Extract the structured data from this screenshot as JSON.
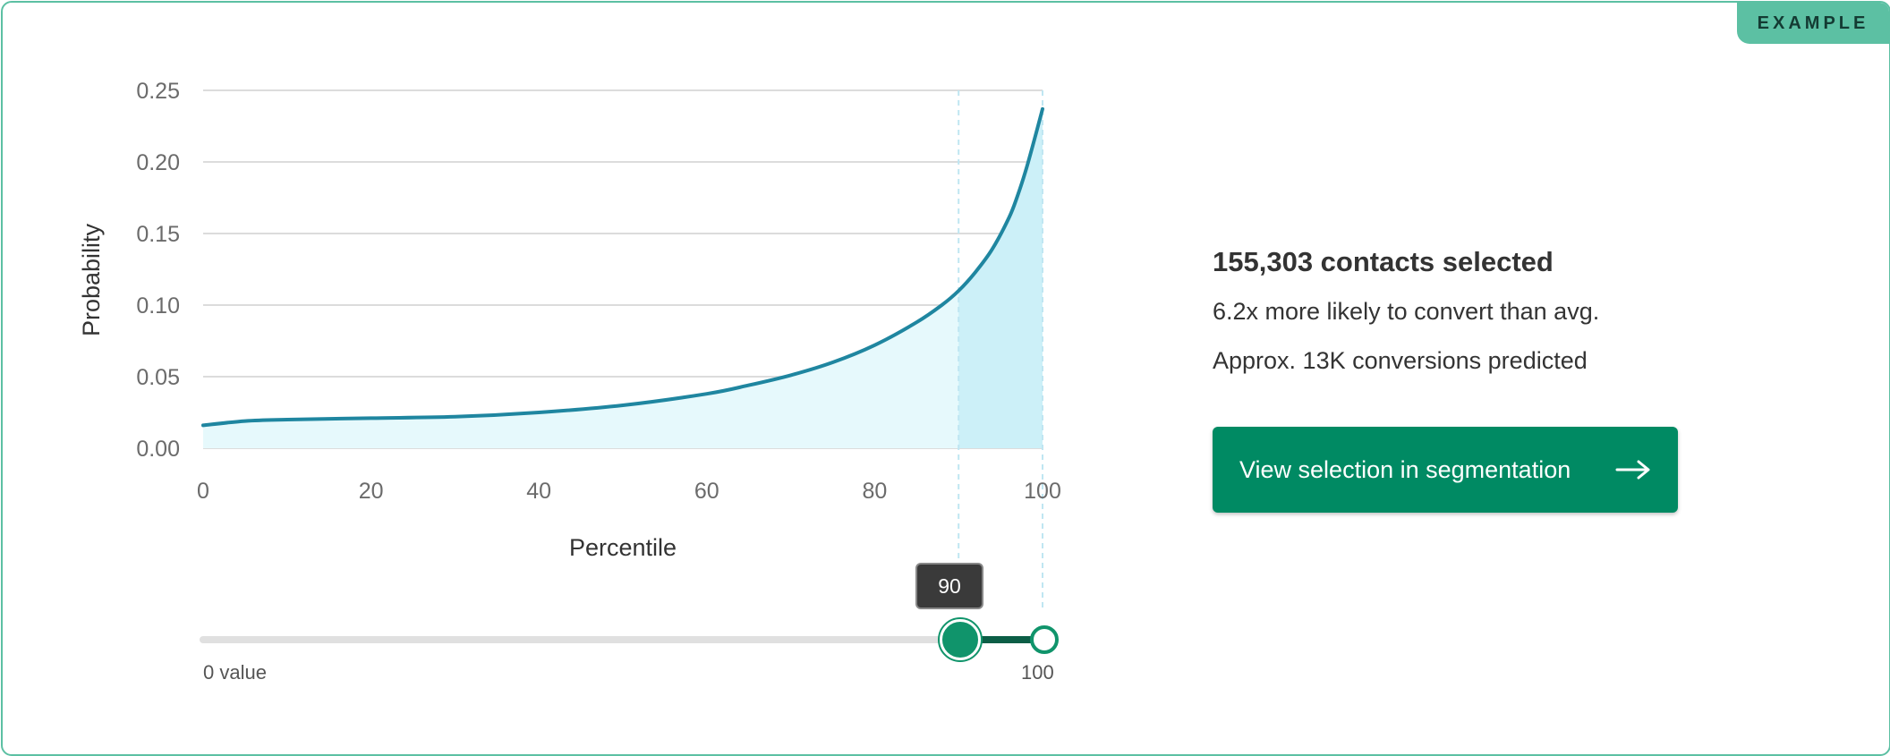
{
  "badge": {
    "label": "EXAMPLE"
  },
  "chart_data": {
    "type": "area",
    "ylabel": "Probability",
    "xlabel": "Percentile",
    "xlim": [
      0,
      100
    ],
    "ylim": [
      0,
      0.25
    ],
    "x_ticks": [
      0,
      20,
      40,
      60,
      80,
      100
    ],
    "y_ticks": [
      "0.00",
      "0.05",
      "0.10",
      "0.15",
      "0.20",
      "0.25"
    ],
    "grid": true,
    "selection_start": 90,
    "selection_end": 100,
    "series": [
      {
        "x": [
          0,
          5,
          10,
          20,
          30,
          40,
          50,
          60,
          65,
          70,
          75,
          80,
          85,
          88,
          90,
          92,
          94,
          96,
          97,
          98,
          99,
          100
        ],
        "y": [
          0.016,
          0.019,
          0.02,
          0.021,
          0.022,
          0.025,
          0.03,
          0.038,
          0.044,
          0.051,
          0.06,
          0.072,
          0.088,
          0.1,
          0.11,
          0.123,
          0.139,
          0.161,
          0.176,
          0.194,
          0.215,
          0.237
        ]
      }
    ],
    "colors": {
      "line": "#1f86a0",
      "fill_light": "#e6f9fc",
      "fill_selected": "#ccf0f8",
      "grid": "#dcdcdc"
    }
  },
  "slider": {
    "value": 90,
    "max": 100,
    "tooltip": "90",
    "min_label": "0 value",
    "max_label": "100",
    "colors": {
      "track": "#e0e0e0",
      "active": "#0c5e46",
      "thumb": "#10946b"
    }
  },
  "summary": {
    "title": "155,303 contacts selected",
    "line1": "6.2x more likely to convert than avg.",
    "line2": "Approx. 13K conversions predicted"
  },
  "cta": {
    "label": "View selection in segmentation",
    "icon": "arrow-right-icon",
    "color": "#008a63"
  }
}
